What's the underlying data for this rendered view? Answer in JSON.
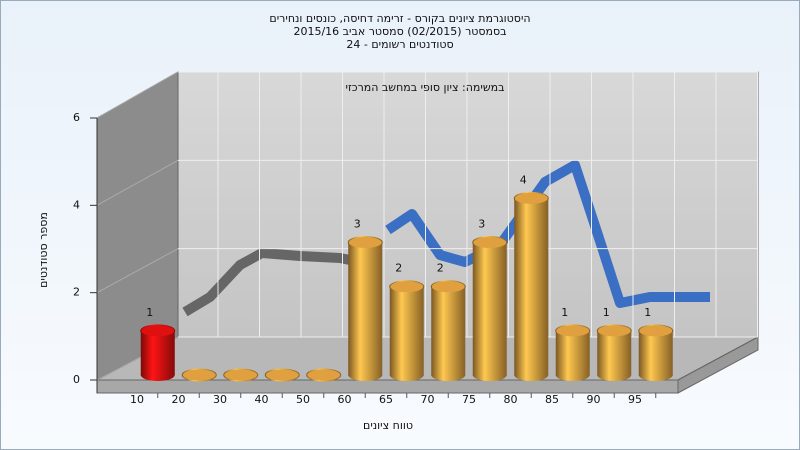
{
  "chart_data": {
    "type": "bar3d",
    "title_lines": [
      "היסטוגרמת ציונים בקורס - זרימה דחיסה, כונסים ונחירים",
      "בסמסטר  (02/2015)  סמסטר אביב  2015/16",
      "סטודנטים רשומים - 24"
    ],
    "annotation": "במשימה: ציון סופי במחשב המרכזי",
    "x_label": "טווח ציונים",
    "y_label": "מספר סטודנטים",
    "categories": [
      "10",
      "20",
      "30",
      "40",
      "50",
      "60",
      "65",
      "70",
      "75",
      "80",
      "85",
      "90",
      "95"
    ],
    "values": [
      1,
      0,
      0,
      0,
      0,
      3,
      2,
      2,
      3,
      4,
      1,
      1,
      1
    ],
    "colors": [
      "#e01010",
      "#e0a040",
      "#e0a040",
      "#e0a040",
      "#e0a040",
      "#e0a040",
      "#e0a040",
      "#e0a040",
      "#e0a040",
      "#e0a040",
      "#e0a040",
      "#e0a040",
      "#e0a040"
    ],
    "ylim": [
      0,
      6
    ],
    "yticks": [
      0,
      2,
      4,
      6
    ],
    "grid": true
  }
}
